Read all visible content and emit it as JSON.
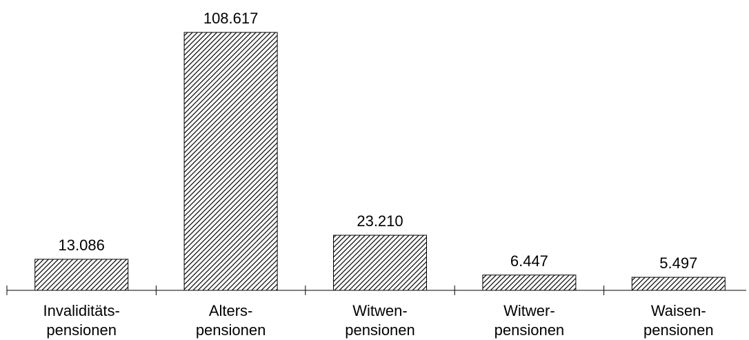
{
  "chart_data": {
    "type": "bar",
    "categories": [
      [
        "Invaliditäts-",
        "pensionen"
      ],
      [
        "Alters-",
        "pensionen"
      ],
      [
        "Witwen-",
        "pensionen"
      ],
      [
        "Witwer-",
        "pensionen"
      ],
      [
        "Waisen-",
        "pensionen"
      ]
    ],
    "values": [
      13086,
      108617,
      23210,
      6447,
      5497
    ],
    "value_labels": [
      "13.086",
      "108.617",
      "23.210",
      "6.447",
      "5.497"
    ],
    "title": "",
    "xlabel": "",
    "ylabel": "",
    "ylim": [
      0,
      108617
    ],
    "grid": false,
    "legend": "none",
    "bar_fill": "hatched",
    "colors": {
      "bar_stroke": "#000000",
      "hatch": "#000000",
      "background": "#ffffff",
      "axis": "#000000"
    }
  }
}
